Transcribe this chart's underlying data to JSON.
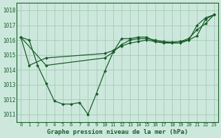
{
  "title": "Graphe pression niveau de la mer (hPa)",
  "bg_color": "#cce8dc",
  "grid_color": "#aaccbb",
  "line_color": "#1a5c2a",
  "xlim": [
    -0.5,
    23.5
  ],
  "ylim": [
    1010.5,
    1018.5
  ],
  "yticks": [
    1011,
    1012,
    1013,
    1014,
    1015,
    1016,
    1017,
    1018
  ],
  "xticks": [
    0,
    1,
    2,
    3,
    4,
    5,
    6,
    7,
    8,
    9,
    10,
    11,
    12,
    13,
    14,
    15,
    16,
    17,
    18,
    19,
    20,
    21,
    22,
    23
  ],
  "line1_x": [
    0,
    1,
    2,
    3,
    4,
    5,
    6,
    7,
    8,
    9,
    10,
    11,
    12,
    13,
    14,
    15,
    16,
    17,
    18,
    19,
    20,
    21,
    22,
    23
  ],
  "line1_y": [
    1016.2,
    1016.0,
    1014.3,
    1013.1,
    1011.9,
    1011.7,
    1011.7,
    1011.8,
    1011.0,
    1012.4,
    1013.9,
    1015.2,
    1016.1,
    1016.1,
    1016.2,
    1016.2,
    1015.9,
    1015.8,
    1015.8,
    1015.8,
    1016.0,
    1017.0,
    1017.5,
    1017.7
  ],
  "line2_x": [
    0,
    1,
    3,
    10,
    11,
    12,
    13,
    14,
    15,
    16,
    17,
    18,
    19,
    20,
    21,
    22,
    23
  ],
  "line2_y": [
    1016.2,
    1014.3,
    1014.8,
    1015.1,
    1015.3,
    1015.6,
    1015.8,
    1015.9,
    1016.0,
    1015.9,
    1015.85,
    1015.85,
    1015.9,
    1016.0,
    1016.3,
    1017.4,
    1017.7
  ],
  "line3_x": [
    0,
    3,
    10,
    11,
    12,
    13,
    14,
    15,
    16,
    17,
    18,
    19,
    20,
    21,
    22,
    23
  ],
  "line3_y": [
    1016.2,
    1014.3,
    1014.8,
    1015.2,
    1015.7,
    1016.0,
    1016.1,
    1016.1,
    1016.0,
    1015.9,
    1015.85,
    1015.9,
    1016.1,
    1016.7,
    1017.1,
    1017.7
  ]
}
